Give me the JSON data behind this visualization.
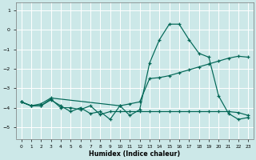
{
  "xlabel": "Humidex (Indice chaleur)",
  "bg_color": "#cce8e8",
  "grid_color": "#ffffff",
  "line_color": "#006655",
  "xlim": [
    -0.5,
    23.5
  ],
  "ylim": [
    -5.6,
    1.4
  ],
  "xticks": [
    0,
    1,
    2,
    3,
    4,
    5,
    6,
    7,
    8,
    9,
    10,
    11,
    12,
    13,
    14,
    15,
    16,
    17,
    18,
    19,
    20,
    21,
    22,
    23
  ],
  "yticks": [
    -5,
    -4,
    -3,
    -2,
    -1,
    0,
    1
  ],
  "curve_peak_x": [
    0,
    1,
    2,
    3,
    4,
    5,
    6,
    7,
    8,
    9,
    10,
    11,
    12,
    13,
    14,
    15,
    16,
    17,
    18,
    19,
    20,
    21,
    22,
    23
  ],
  "curve_peak_y": [
    -3.7,
    -3.9,
    -3.9,
    -3.6,
    -3.9,
    -4.2,
    -4.0,
    -4.3,
    -4.2,
    -4.6,
    -3.9,
    -4.4,
    -4.1,
    -1.7,
    -0.5,
    0.3,
    0.3,
    -0.5,
    -1.2,
    -1.4,
    -3.4,
    -4.3,
    -4.6,
    -4.5
  ],
  "curve_diag_x": [
    0,
    1,
    2,
    3,
    10,
    11,
    12,
    13,
    14,
    15,
    16,
    17,
    18,
    19,
    20,
    21,
    22,
    23
  ],
  "curve_diag_y": [
    -3.7,
    -3.9,
    -3.8,
    -3.5,
    -3.9,
    -3.8,
    -3.7,
    -2.5,
    -2.45,
    -2.35,
    -2.2,
    -2.05,
    -1.9,
    -1.75,
    -1.6,
    -1.45,
    -1.35,
    -1.4
  ],
  "curve_flat_x": [
    0,
    1,
    2,
    3,
    4,
    5,
    6,
    7,
    8,
    9,
    10,
    11,
    12,
    13,
    14,
    15,
    16,
    17,
    18,
    19,
    20,
    21,
    22,
    23
  ],
  "curve_flat_y": [
    -3.7,
    -3.9,
    -3.9,
    -3.55,
    -4.0,
    -4.0,
    -4.1,
    -3.9,
    -4.35,
    -4.2,
    -4.2,
    -4.2,
    -4.2,
    -4.2,
    -4.2,
    -4.2,
    -4.2,
    -4.2,
    -4.2,
    -4.2,
    -4.2,
    -4.2,
    -4.25,
    -4.4
  ]
}
